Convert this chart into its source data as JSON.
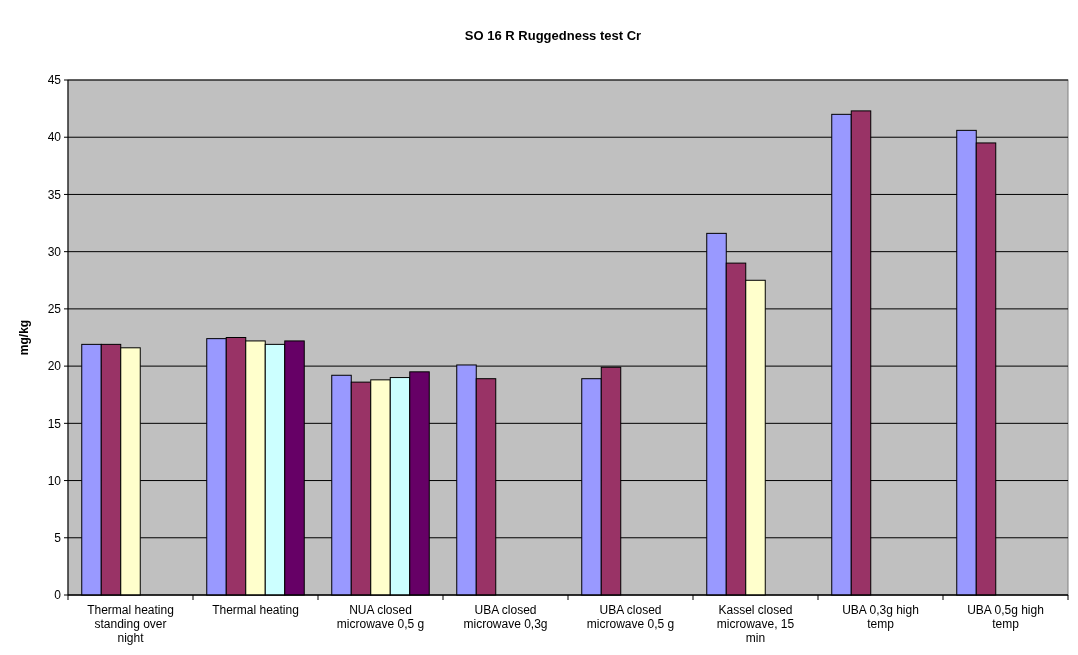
{
  "chart_data": {
    "type": "bar",
    "title": "SO 16 R Ruggedness test Cr",
    "ylabel": "mg/kg",
    "categories": [
      "Thermal heating standing over night",
      "Thermal heating",
      "NUA closed microwave 0,5 g",
      "UBA closed microwave 0,3g",
      "UBA closed microwave 0,5 g",
      "Kassel closed microwave, 15 min",
      "UBA 0,3g high temp",
      "UBA 0,5g high temp"
    ],
    "series": [
      {
        "color": "#9999ff",
        "values": [
          21.9,
          22.4,
          19.2,
          20.1,
          18.9,
          31.6,
          42.0,
          40.6
        ]
      },
      {
        "color": "#993366",
        "values": [
          21.9,
          22.5,
          18.6,
          18.9,
          19.9,
          29.0,
          42.3,
          39.5
        ]
      },
      {
        "color": "#ffffcc",
        "values": [
          21.6,
          22.2,
          18.8,
          null,
          null,
          27.5,
          null,
          null
        ]
      },
      {
        "color": "#ccffff",
        "values": [
          null,
          21.9,
          19.0,
          null,
          null,
          null,
          null,
          null
        ]
      },
      {
        "color": "#660066",
        "values": [
          null,
          22.2,
          19.5,
          null,
          null,
          null,
          null,
          null
        ]
      }
    ],
    "ylim": [
      0,
      45
    ],
    "yticks": [
      0,
      5,
      10,
      15,
      20,
      25,
      30,
      35,
      40,
      45
    ],
    "grid": "y"
  }
}
